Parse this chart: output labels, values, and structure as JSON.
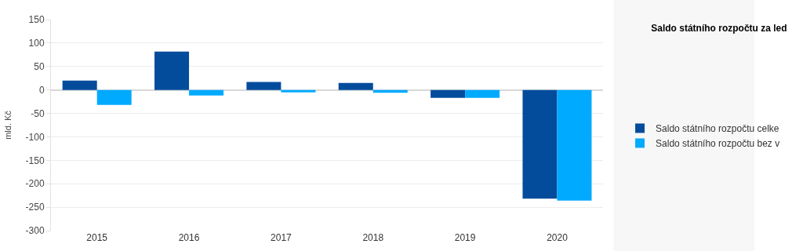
{
  "chart_data": {
    "type": "bar",
    "title": "Saldo státního rozpočtu za led",
    "ylabel": "mld. Kč",
    "categories": [
      "2015",
      "2016",
      "2017",
      "2018",
      "2019",
      "2020"
    ],
    "series": [
      {
        "name": "Saldo státního rozpočtu celke",
        "color": "#034c9c",
        "values": [
          20,
          82,
          17,
          15,
          -17,
          -232
        ]
      },
      {
        "name": "Saldo státního rozpočtu bez v",
        "color": "#00aaff",
        "values": [
          -32,
          -12,
          -5,
          -6,
          -17,
          -236
        ]
      }
    ],
    "ylim": [
      -300,
      150
    ],
    "yticks": [
      -300,
      -250,
      -200,
      -150,
      -100,
      -50,
      0,
      50,
      100,
      150
    ],
    "grid": "y",
    "legend": "right"
  }
}
